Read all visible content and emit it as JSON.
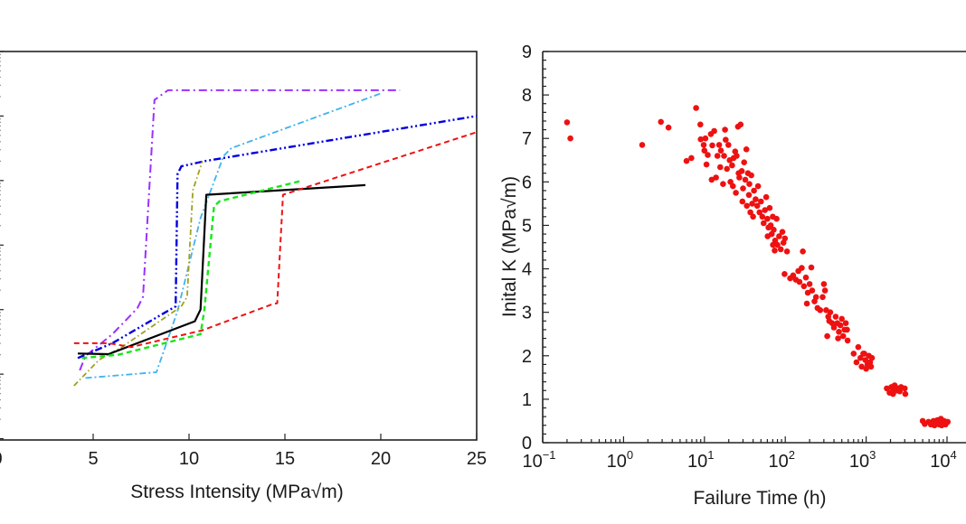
{
  "chart_data": [
    {
      "type": "line",
      "title": "",
      "xlabel": "Stress Intensity (MPa√m)",
      "ylabel": "",
      "xlim": [
        0,
        25
      ],
      "x_ticks": [
        0,
        5,
        10,
        15,
        20,
        25
      ],
      "x_tick_labels": [
        "0",
        "5",
        "10",
        "15",
        "20",
        "25"
      ],
      "yscale": "log",
      "y_units_note": "log10 decades relative to lowest labeled decade (tick labels cut off)",
      "ylim": [
        -1.02,
        5.0
      ],
      "y_major_decades": [
        0,
        1,
        2,
        3,
        4
      ],
      "grid": false,
      "legend": "none",
      "series": [
        {
          "name": "purple",
          "color": "#9b30ff",
          "dash": "dashdot",
          "x": [
            4.3,
            4.6,
            6.0,
            7.3,
            7.6,
            8.2,
            8.9,
            21.0
          ],
          "y": [
            0.06,
            0.28,
            0.62,
            1.02,
            1.2,
            4.25,
            4.4,
            4.4
          ]
        },
        {
          "name": "cyan",
          "color": "#3fb3f0",
          "dash": "dashdot-thin",
          "x": [
            4.6,
            8.3,
            9.4,
            10.6,
            11.8,
            12.2,
            20.0
          ],
          "y": [
            -0.06,
            0.03,
            0.98,
            2.42,
            3.38,
            3.5,
            4.35
          ]
        },
        {
          "name": "blue",
          "color": "#0000e0",
          "dash": "dashdot-dot",
          "x": [
            4.2,
            6.0,
            9.3,
            9.4,
            9.6,
            10.8,
            25.0
          ],
          "y": [
            0.25,
            0.48,
            1.05,
            3.1,
            3.22,
            3.3,
            4.0
          ]
        },
        {
          "name": "olive",
          "color": "#a0a020",
          "dash": "dashdot-fine",
          "x": [
            4.0,
            5.3,
            6.5,
            9.6,
            9.9,
            10.2,
            10.7
          ],
          "y": [
            -0.18,
            0.22,
            0.42,
            1.05,
            1.2,
            2.85,
            3.3
          ]
        },
        {
          "name": "black",
          "color": "#000000",
          "dash": "solid",
          "x": [
            4.2,
            5.8,
            10.3,
            10.6,
            10.9,
            19.2
          ],
          "y": [
            0.32,
            0.31,
            0.82,
            1.0,
            2.78,
            2.93
          ]
        },
        {
          "name": "green",
          "color": "#19e619",
          "dash": "dashed",
          "x": [
            4.4,
            6.3,
            10.6,
            10.8,
            11.3,
            11.6,
            15.9
          ],
          "y": [
            0.25,
            0.3,
            0.62,
            1.0,
            2.6,
            2.68,
            3.0
          ]
        },
        {
          "name": "red",
          "color": "#ee1111",
          "dash": "dashed",
          "x": [
            4.0,
            5.8,
            7.0,
            10.7,
            14.3,
            14.6,
            14.9,
            25.0
          ],
          "y": [
            0.48,
            0.48,
            0.42,
            0.68,
            1.08,
            1.1,
            2.78,
            3.75
          ]
        }
      ]
    },
    {
      "type": "scatter",
      "title": "",
      "xlabel": "Failure Time (h)",
      "ylabel": "Inital K (MPa√m)",
      "xscale": "log",
      "xlim": [
        0.1,
        10000
      ],
      "x_ticks": [
        0.1,
        1,
        10,
        100,
        1000,
        10000
      ],
      "x_tick_labels": [
        [
          "10",
          "−1"
        ],
        [
          "10",
          "0"
        ],
        [
          "10",
          "1"
        ],
        [
          "10",
          "2"
        ],
        [
          "10",
          "3"
        ],
        [
          "10",
          "4"
        ]
      ],
      "ylim": [
        0,
        9
      ],
      "y_ticks": [
        0,
        1,
        2,
        3,
        4,
        5,
        6,
        7,
        8,
        9
      ],
      "y_tick_labels": [
        "0",
        "1",
        "2",
        "3",
        "4",
        "5",
        "6",
        "7",
        "8",
        "9"
      ],
      "grid": false,
      "legend": "none",
      "color": "#ee1111",
      "points": [
        [
          0.2,
          7.37
        ],
        [
          0.22,
          7.0
        ],
        [
          1.7,
          6.85
        ],
        [
          2.9,
          7.38
        ],
        [
          3.6,
          7.25
        ],
        [
          6.0,
          6.48
        ],
        [
          6.9,
          6.55
        ],
        [
          7.9,
          7.7
        ],
        [
          8.9,
          7.32
        ],
        [
          10.3,
          7.0
        ],
        [
          9.0,
          6.98
        ],
        [
          9.8,
          6.85
        ],
        [
          10.0,
          6.72
        ],
        [
          11.0,
          6.62
        ],
        [
          10.6,
          6.4
        ],
        [
          12.0,
          7.1
        ],
        [
          13.2,
          7.17
        ],
        [
          12.5,
          6.84
        ],
        [
          14.5,
          6.6
        ],
        [
          15.2,
          6.85
        ],
        [
          16.0,
          6.72
        ],
        [
          12.3,
          6.05
        ],
        [
          13.9,
          6.1
        ],
        [
          15.7,
          6.34
        ],
        [
          17.5,
          6.6
        ],
        [
          18.3,
          6.97
        ],
        [
          18.0,
          7.2
        ],
        [
          19.8,
          6.85
        ],
        [
          20.5,
          6.5
        ],
        [
          17.0,
          5.95
        ],
        [
          19.0,
          6.3
        ],
        [
          21.0,
          6.0
        ],
        [
          22.0,
          6.38
        ],
        [
          23.0,
          6.55
        ],
        [
          24.0,
          6.7
        ],
        [
          26.0,
          7.27
        ],
        [
          28.0,
          7.32
        ],
        [
          24.5,
          5.75
        ],
        [
          27.0,
          6.1
        ],
        [
          29.0,
          6.25
        ],
        [
          31.0,
          6.45
        ],
        [
          33.0,
          6.75
        ],
        [
          25.0,
          6.6
        ],
        [
          22.5,
          5.9
        ],
        [
          26.5,
          6.2
        ],
        [
          30.0,
          5.85
        ],
        [
          32.0,
          6.05
        ],
        [
          34.5,
          6.2
        ],
        [
          36.0,
          5.95
        ],
        [
          38.0,
          6.15
        ],
        [
          29.5,
          5.55
        ],
        [
          33.5,
          5.45
        ],
        [
          35.5,
          5.7
        ],
        [
          37.0,
          5.3
        ],
        [
          39.0,
          5.5
        ],
        [
          41.0,
          5.8
        ],
        [
          43.0,
          5.6
        ],
        [
          45.0,
          5.45
        ],
        [
          40.0,
          5.2
        ],
        [
          46.0,
          5.9
        ],
        [
          48.0,
          5.3
        ],
        [
          50.0,
          5.55
        ],
        [
          52.0,
          5.2
        ],
        [
          54.0,
          5.05
        ],
        [
          56.0,
          5.35
        ],
        [
          58.0,
          5.65
        ],
        [
          60.0,
          5.15
        ],
        [
          62.0,
          4.95
        ],
        [
          64.0,
          5.4
        ],
        [
          66.0,
          5.0
        ],
        [
          68.0,
          4.8
        ],
        [
          70.0,
          5.2
        ],
        [
          72.0,
          4.9
        ],
        [
          75.0,
          4.65
        ],
        [
          78.0,
          5.15
        ],
        [
          80.0,
          4.55
        ],
        [
          84.0,
          4.75
        ],
        [
          88.0,
          4.45
        ],
        [
          92.0,
          4.85
        ],
        [
          95.0,
          4.6
        ],
        [
          99.0,
          4.7
        ],
        [
          105.0,
          4.4
        ],
        [
          70.5,
          4.55
        ],
        [
          60.5,
          4.75
        ],
        [
          74.0,
          4.42
        ],
        [
          98.0,
          3.88
        ],
        [
          115.0,
          3.78
        ],
        [
          125.0,
          3.85
        ],
        [
          135.0,
          3.75
        ],
        [
          150.0,
          3.7
        ],
        [
          160.0,
          4.02
        ],
        [
          145.0,
          3.95
        ],
        [
          170.0,
          3.6
        ],
        [
          180.0,
          3.8
        ],
        [
          190.0,
          3.45
        ],
        [
          200.0,
          3.65
        ],
        [
          210.0,
          4.03
        ],
        [
          165.0,
          4.4
        ],
        [
          185.0,
          3.2
        ],
        [
          215.0,
          3.5
        ],
        [
          230.0,
          3.25
        ],
        [
          250.0,
          3.1
        ],
        [
          240.0,
          3.35
        ],
        [
          270.0,
          3.05
        ],
        [
          290.0,
          3.35
        ],
        [
          300.0,
          3.65
        ],
        [
          310.0,
          3.5
        ],
        [
          320.0,
          3.05
        ],
        [
          340.0,
          2.9
        ],
        [
          350.0,
          2.8
        ],
        [
          360.0,
          3.0
        ],
        [
          380.0,
          2.75
        ],
        [
          400.0,
          2.65
        ],
        [
          420.0,
          2.9
        ],
        [
          440.0,
          2.75
        ],
        [
          460.0,
          2.55
        ],
        [
          480.0,
          2.7
        ],
        [
          500.0,
          2.85
        ],
        [
          520.0,
          2.45
        ],
        [
          540.0,
          2.6
        ],
        [
          560.0,
          2.75
        ],
        [
          590.0,
          2.35
        ],
        [
          330.0,
          2.45
        ],
        [
          450.0,
          2.4
        ],
        [
          580.0,
          2.6
        ],
        [
          700.0,
          2.05
        ],
        [
          760.0,
          1.85
        ],
        [
          800.0,
          2.2
        ],
        [
          850.0,
          1.95
        ],
        [
          880.0,
          1.75
        ],
        [
          920.0,
          2.05
        ],
        [
          980.0,
          1.9
        ],
        [
          1040.0,
          1.8
        ],
        [
          1080.0,
          2.0
        ],
        [
          1120.0,
          1.85
        ],
        [
          1150.0,
          1.75
        ],
        [
          1180.0,
          1.95
        ],
        [
          1000.0,
          1.7
        ],
        [
          950.0,
          2.05
        ],
        [
          1800.0,
          1.25
        ],
        [
          1950.0,
          1.15
        ],
        [
          2050.0,
          1.28
        ],
        [
          2150.0,
          1.12
        ],
        [
          2250.0,
          1.32
        ],
        [
          2350.0,
          1.2
        ],
        [
          2450.0,
          1.25
        ],
        [
          2600.0,
          1.18
        ],
        [
          2700.0,
          1.28
        ],
        [
          3050.0,
          1.12
        ],
        [
          3000.0,
          1.25
        ],
        [
          2200.0,
          1.22
        ],
        [
          5000.0,
          0.5
        ],
        [
          5300.0,
          0.43
        ],
        [
          5900.0,
          0.48
        ],
        [
          6300.0,
          0.42
        ],
        [
          6800.0,
          0.5
        ],
        [
          7200.0,
          0.45
        ],
        [
          7600.0,
          0.52
        ],
        [
          8000.0,
          0.42
        ],
        [
          8400.0,
          0.55
        ],
        [
          8800.0,
          0.45
        ],
        [
          9200.0,
          0.5
        ],
        [
          9600.0,
          0.42
        ],
        [
          10200.0,
          0.48
        ],
        [
          7000.0,
          0.4
        ],
        [
          8600.0,
          0.4
        ]
      ]
    }
  ]
}
